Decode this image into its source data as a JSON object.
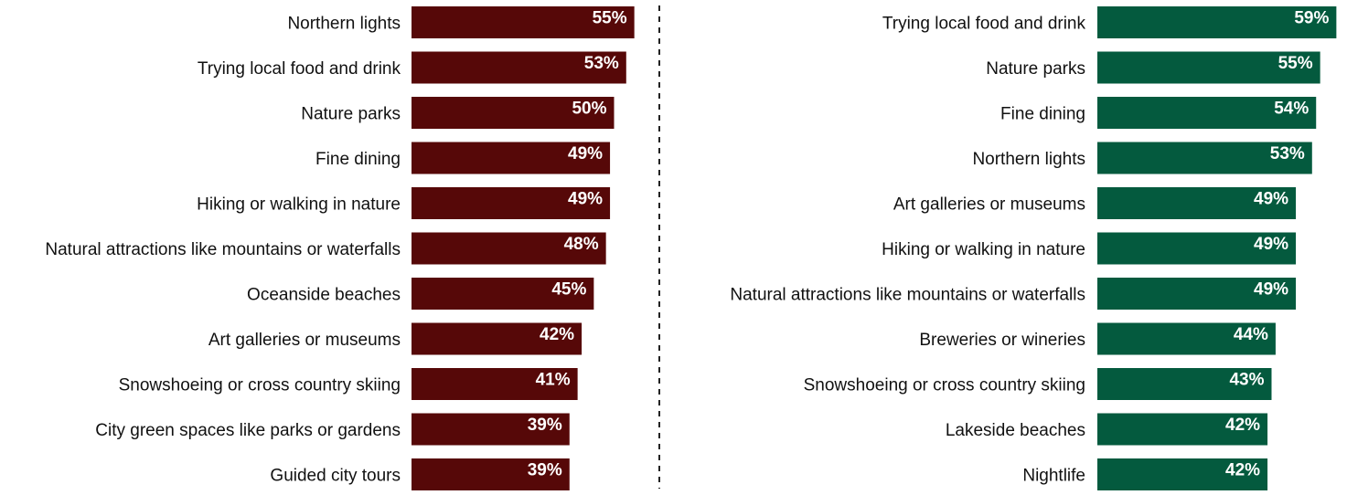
{
  "colors": {
    "left_bars": "#560808",
    "right_bars": "#045a3e",
    "divider": "#222222",
    "label_text": "#111111",
    "value_text": "#ffffff"
  },
  "chart_data": [
    {
      "type": "bar",
      "orientation": "horizontal",
      "categories": [
        "Northern lights",
        "Trying local food and drink",
        "Nature parks",
        "Fine dining",
        "Hiking or walking in nature",
        "Natural attractions like mountains or waterfalls",
        "Oceanside beaches",
        "Art galleries or museums",
        "Snowshoeing or cross country skiing",
        "City green spaces like parks or gardens",
        "Guided city tours"
      ],
      "values": [
        55,
        53,
        50,
        49,
        49,
        48,
        45,
        42,
        41,
        39,
        39
      ],
      "value_labels": [
        "55%",
        "53%",
        "50%",
        "49%",
        "49%",
        "48%",
        "45%",
        "42%",
        "41%",
        "39%",
        "39%"
      ],
      "unit": "%",
      "xlim": [
        0,
        100
      ],
      "grid": false,
      "title": "",
      "xlabel": "",
      "ylabel": ""
    },
    {
      "type": "bar",
      "orientation": "horizontal",
      "categories": [
        "Trying local food and drink",
        "Nature parks",
        "Fine dining",
        "Northern lights",
        "Art galleries or museums",
        "Hiking or walking in nature",
        "Natural attractions like mountains or waterfalls",
        "Breweries or wineries",
        "Snowshoeing or cross country skiing",
        "Lakeside beaches",
        "Nightlife"
      ],
      "values": [
        59,
        55,
        54,
        53,
        49,
        49,
        49,
        44,
        43,
        42,
        42
      ],
      "value_labels": [
        "59%",
        "55%",
        "54%",
        "53%",
        "49%",
        "49%",
        "49%",
        "44%",
        "43%",
        "42%",
        "42%"
      ],
      "unit": "%",
      "xlim": [
        0,
        100
      ],
      "grid": false,
      "title": "",
      "xlabel": "",
      "ylabel": ""
    }
  ]
}
